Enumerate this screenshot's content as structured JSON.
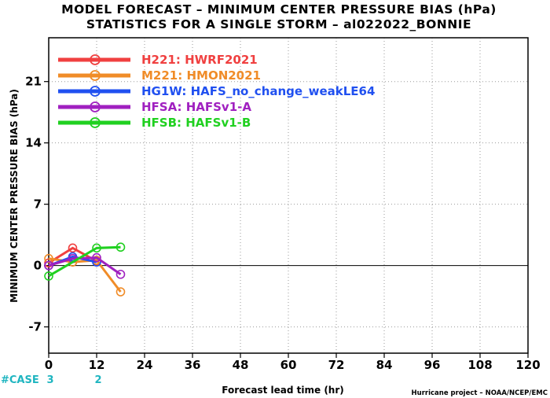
{
  "chart_data": {
    "type": "line",
    "title_line1": "MODEL FORECAST – MINIMUM CENTER PRESSURE BIAS (hPa)",
    "title_line2": "STATISTICS FOR A SINGLE STORM – al022022_BONNIE",
    "xlabel": "Forecast lead time (hr)",
    "ylabel": "MINIMUM CENTER PRESSURE BIAS (hPa)",
    "xlim": [
      0,
      120
    ],
    "ylim": [
      -10,
      26
    ],
    "xticks": [
      0,
      12,
      24,
      36,
      48,
      60,
      72,
      84,
      96,
      108,
      120
    ],
    "yticks": [
      -7,
      0,
      7,
      14,
      21
    ],
    "grid": true,
    "legend_position": "top-left",
    "case_label": "#CASE",
    "cases": [
      {
        "x": 0,
        "count": "3"
      },
      {
        "x": 12,
        "count": "2"
      }
    ],
    "credit": "Hurricane project – NOAA/NCEP/EMC",
    "series": [
      {
        "name": "H221: HWRF2021",
        "color": "#f04040",
        "x": [
          0,
          6,
          12
        ],
        "y": [
          0.3,
          2.0,
          0.5
        ]
      },
      {
        "name": "M221: HMON2021",
        "color": "#f08c28",
        "x": [
          0,
          6,
          12,
          18
        ],
        "y": [
          0.8,
          0.4,
          0.6,
          -3.0
        ]
      },
      {
        "name": "HG1W: HAFS_no_change_weakLE64",
        "color": "#2050f0",
        "x": [
          0,
          6,
          12
        ],
        "y": [
          0.0,
          1.0,
          0.4
        ]
      },
      {
        "name": "HFSA: HAFSv1-A",
        "color": "#a020c0",
        "x": [
          0,
          6,
          12,
          18
        ],
        "y": [
          0.0,
          0.8,
          0.9,
          -1.0
        ]
      },
      {
        "name": "HFSB: HAFSv1-B",
        "color": "#20d020",
        "x": [
          0,
          12,
          18
        ],
        "y": [
          -1.2,
          2.0,
          2.1
        ]
      }
    ]
  }
}
